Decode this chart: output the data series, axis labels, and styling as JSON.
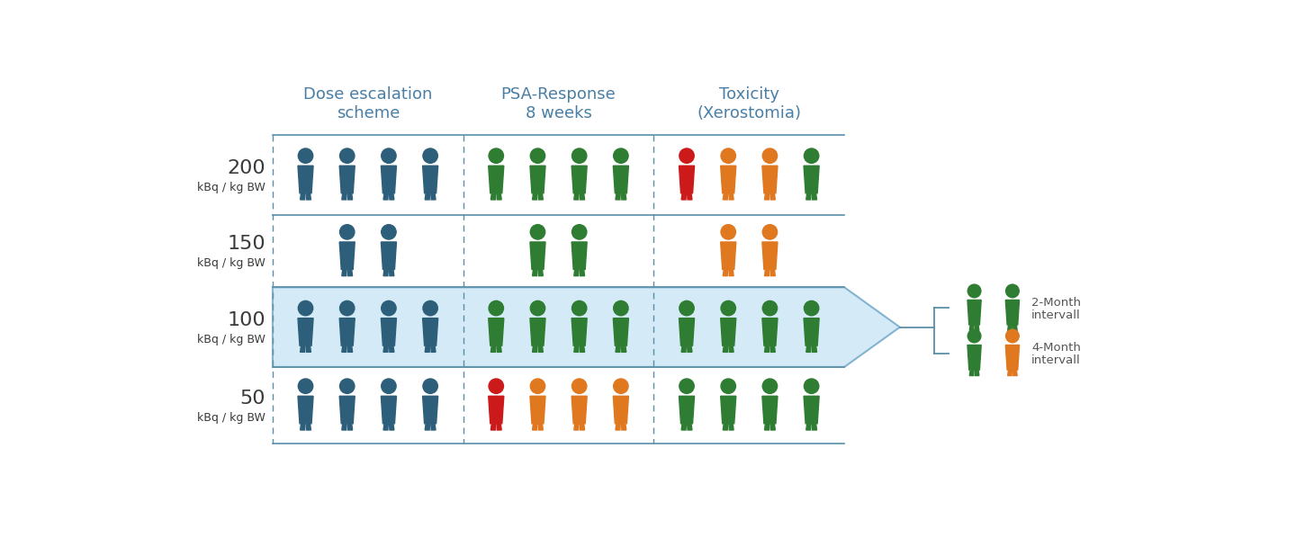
{
  "col_headers": [
    "Dose escalation\nscheme",
    "PSA-Response\n8 weeks",
    "Toxicity\n(Xerostomia)"
  ],
  "col_header_color": "#4a7fa5",
  "row_labels_top": [
    "200",
    "150",
    "100",
    "50"
  ],
  "row_labels_bot": "kBq / kg BW",
  "dark_blue": "#2d5f7a",
  "green": "#2e7d32",
  "orange": "#e07820",
  "red": "#cc1a1a",
  "corridor_color": "#d0e8f5",
  "corridor_edge": "#7aadcc",
  "rows": {
    "200": {
      "dose": [
        "blue",
        "blue",
        "blue",
        "blue"
      ],
      "psa": [
        "green",
        "green",
        "green",
        "green"
      ],
      "tox": [
        "red",
        "orange",
        "orange",
        "green"
      ]
    },
    "150": {
      "dose": [
        "blue",
        "blue"
      ],
      "psa": [
        "green",
        "green"
      ],
      "tox": [
        "orange",
        "orange"
      ]
    },
    "100": {
      "dose": [
        "blue",
        "blue",
        "blue",
        "blue"
      ],
      "psa": [
        "green",
        "green",
        "green",
        "green"
      ],
      "tox": [
        "green",
        "green",
        "green",
        "green"
      ]
    },
    "50": {
      "dose": [
        "blue",
        "blue",
        "blue",
        "blue"
      ],
      "psa": [
        "red",
        "orange",
        "orange",
        "orange"
      ],
      "tox": [
        "green",
        "green",
        "green",
        "green"
      ]
    }
  },
  "outcome_2month": [
    "green",
    "green"
  ],
  "outcome_4month": [
    "green",
    "orange"
  ],
  "bg_color": "#ffffff",
  "line_color": "#5a8fa8",
  "dashed_color": "#5a8fa8"
}
